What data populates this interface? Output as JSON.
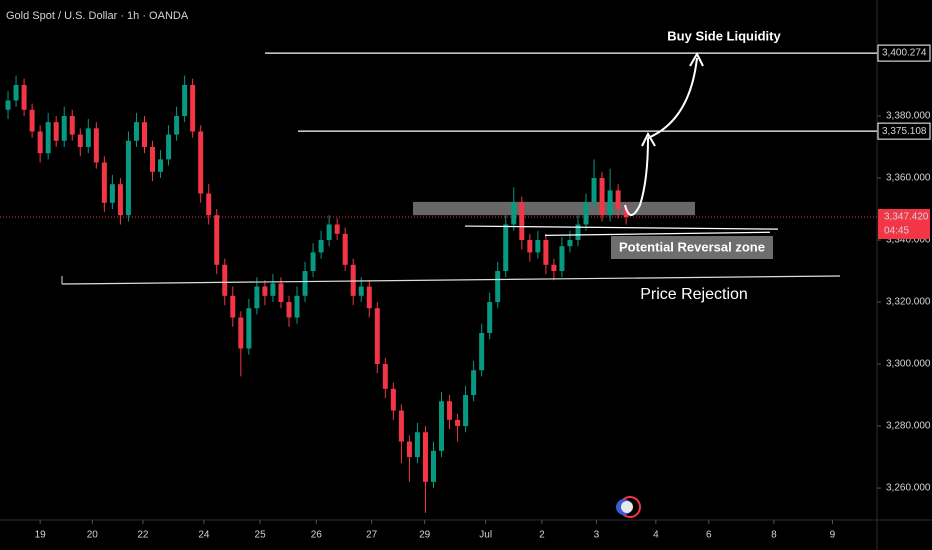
{
  "chart_data": {
    "type": "candlestick",
    "title": "Gold Spot / U.S. Dollar · 1h · OANDA",
    "up_color": "#089981",
    "down_color": "#f23645",
    "xlim": [
      -1,
      108
    ],
    "xticks": [
      {
        "value": 4,
        "label": "19"
      },
      {
        "value": 10.5,
        "label": "20"
      },
      {
        "value": 16.8,
        "label": "22"
      },
      {
        "value": 24.4,
        "label": "24"
      },
      {
        "value": 31.4,
        "label": "25"
      },
      {
        "value": 38.4,
        "label": "26"
      },
      {
        "value": 45.3,
        "label": "27"
      },
      {
        "value": 51.9,
        "label": "29"
      },
      {
        "value": 59.5,
        "label": "Jul"
      },
      {
        "value": 66.5,
        "label": "2"
      },
      {
        "value": 73.3,
        "label": "3"
      },
      {
        "value": 80.7,
        "label": "4"
      },
      {
        "value": 87.3,
        "label": "6"
      },
      {
        "value": 95.4,
        "label": "8"
      },
      {
        "value": 102.7,
        "label": "9"
      }
    ],
    "ylim": [
      3249.7,
      3417.4
    ],
    "yticks": [
      {
        "value": 3260,
        "label": "3,260.000"
      },
      {
        "value": 3280,
        "label": "3,280.000"
      },
      {
        "value": 3300,
        "label": "3,300.000"
      },
      {
        "value": 3320,
        "label": "3,320.000"
      },
      {
        "value": 3340,
        "label": "3,340.000"
      },
      {
        "value": 3360,
        "label": "3,360.000"
      },
      {
        "value": 3380,
        "label": "3,380.000"
      }
    ],
    "open": [
      3382,
      3385,
      3390,
      3382,
      3375,
      3368,
      3378,
      3372,
      3380,
      3374,
      3370,
      3376,
      3365,
      3352,
      3358,
      3348,
      3372,
      3378,
      3370,
      3362,
      3366,
      3374,
      3380,
      3390,
      3375,
      3355,
      3348,
      3332,
      3322,
      3315,
      3305,
      3318,
      3325,
      3322,
      3326,
      3320,
      3315,
      3322,
      3330,
      3336,
      3340,
      3345,
      3342,
      3332,
      3322,
      3325,
      3318,
      3300,
      3292,
      3285,
      3275,
      3270,
      3278,
      3262,
      3272,
      3288,
      3282,
      3280,
      3290,
      3298,
      3310,
      3320,
      3330,
      3345,
      3352,
      3340,
      3336,
      3340,
      3332,
      3330,
      3338,
      3340,
      3345,
      3352,
      3360,
      3348,
      3356,
      3350
    ],
    "high": [
      3388,
      3393,
      3392,
      3384,
      3377,
      3381,
      3380,
      3383,
      3382,
      3376,
      3379,
      3378,
      3367,
      3361,
      3360,
      3375,
      3381,
      3380,
      3372,
      3369,
      3377,
      3383,
      3393,
      3392,
      3377,
      3358,
      3350,
      3334,
      3325,
      3317,
      3321,
      3328,
      3327,
      3329,
      3328,
      3322,
      3325,
      3333,
      3339,
      3343,
      3348,
      3347,
      3344,
      3334,
      3328,
      3327,
      3320,
      3302,
      3294,
      3287,
      3277,
      3281,
      3280,
      3275,
      3291,
      3290,
      3284,
      3293,
      3301,
      3313,
      3323,
      3333,
      3348,
      3357,
      3354,
      3342,
      3343,
      3342,
      3334,
      3341,
      3343,
      3348,
      3355,
      3366,
      3362,
      3363,
      3358,
      3352
    ],
    "low": [
      3379,
      3383,
      3380,
      3373,
      3365,
      3366,
      3370,
      3370,
      3372,
      3367,
      3368,
      3363,
      3349,
      3350,
      3345,
      3346,
      3370,
      3368,
      3359,
      3360,
      3364,
      3372,
      3378,
      3373,
      3352,
      3345,
      3329,
      3319,
      3312,
      3296,
      3303,
      3316,
      3319,
      3320,
      3318,
      3312,
      3313,
      3320,
      3328,
      3334,
      3338,
      3340,
      3330,
      3319,
      3320,
      3315,
      3297,
      3289,
      3282,
      3268,
      3262,
      3268,
      3252,
      3260,
      3270,
      3279,
      3275,
      3278,
      3288,
      3296,
      3308,
      3318,
      3328,
      3343,
      3337,
      3333,
      3334,
      3329,
      3327,
      3328,
      3336,
      3338,
      3343,
      3350,
      3346,
      3346,
      3347,
      3345
    ],
    "close": [
      3385,
      3390,
      3382,
      3375,
      3368,
      3378,
      3372,
      3380,
      3374,
      3370,
      3376,
      3365,
      3352,
      3358,
      3348,
      3372,
      3378,
      3370,
      3362,
      3366,
      3374,
      3380,
      3390,
      3375,
      3355,
      3348,
      3332,
      3322,
      3315,
      3305,
      3318,
      3325,
      3322,
      3326,
      3320,
      3315,
      3322,
      3330,
      3336,
      3340,
      3345,
      3342,
      3332,
      3322,
      3325,
      3318,
      3300,
      3292,
      3285,
      3275,
      3270,
      3278,
      3262,
      3272,
      3288,
      3282,
      3280,
      3290,
      3298,
      3310,
      3320,
      3330,
      3345,
      3352,
      3340,
      3336,
      3340,
      3332,
      3330,
      3338,
      3340,
      3345,
      3352,
      3360,
      3348,
      3356,
      3350,
      3347.42
    ],
    "levels": [
      {
        "value": 3400.274,
        "label": "3,400.274"
      },
      {
        "value": 3375.108,
        "label": "3,375.108"
      }
    ],
    "last_price": {
      "value": 3347.42,
      "label": "3,347.420",
      "countdown": "04:45"
    },
    "zone": [
      3348,
      3352.3
    ],
    "reversal_lines": [
      [
        3344.5,
        3343.5
      ],
      [
        3341.5,
        3342.5
      ]
    ],
    "rejection_line": [
      3325.8,
      3328.4
    ],
    "annotations": [
      "Buy Side Liquidity",
      "Potential Reversal zone",
      "Price Rejection"
    ]
  }
}
